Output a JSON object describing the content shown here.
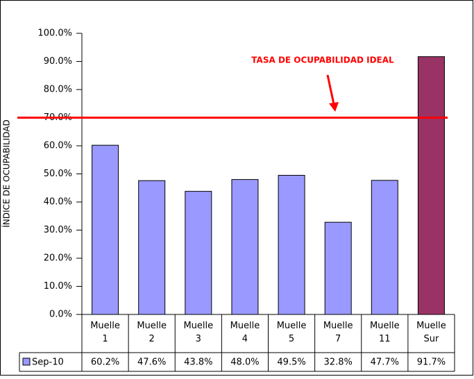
{
  "chart_data": {
    "type": "bar",
    "annotation": "TASA DE OCUPABILIDAD IDEAL",
    "y_label": "ÍNDICE DE OCUPABILIDAD",
    "categories": [
      "Muelle 1",
      "Muelle 2",
      "Muelle 3",
      "Muelle 4",
      "Muelle 5",
      "Muelle 7",
      "Muelle 11",
      "Muelle Sur"
    ],
    "series": [
      {
        "name": "Sep-10",
        "color": "#9999ff",
        "point_colors": [
          "#9999ff",
          "#9999ff",
          "#9999ff",
          "#9999ff",
          "#9999ff",
          "#9999ff",
          "#9999ff",
          "#993366"
        ],
        "values": [
          60.2,
          47.6,
          43.8,
          48.0,
          49.5,
          32.8,
          47.7,
          91.7
        ],
        "value_labels": [
          "60.2%",
          "47.6%",
          "43.8%",
          "48.0%",
          "49.5%",
          "32.8%",
          "47.7%",
          "91.7%"
        ]
      }
    ],
    "reference_line": {
      "value": 70,
      "color": "#ff0000"
    },
    "ylim": [
      0,
      100
    ],
    "yticks": [
      {
        "value": 0,
        "label": "0.0%"
      },
      {
        "value": 10,
        "label": "10.0%"
      },
      {
        "value": 20,
        "label": "20.0%"
      },
      {
        "value": 30,
        "label": "30.0%"
      },
      {
        "value": 40,
        "label": "40.0%"
      },
      {
        "value": 50,
        "label": "50.0%"
      },
      {
        "value": 60,
        "label": "60.0%"
      },
      {
        "value": 70,
        "label": "70.0%"
      },
      {
        "value": 80,
        "label": "80.0%"
      },
      {
        "value": 90,
        "label": "90.0%"
      },
      {
        "value": 100,
        "label": "100.0%"
      }
    ]
  }
}
